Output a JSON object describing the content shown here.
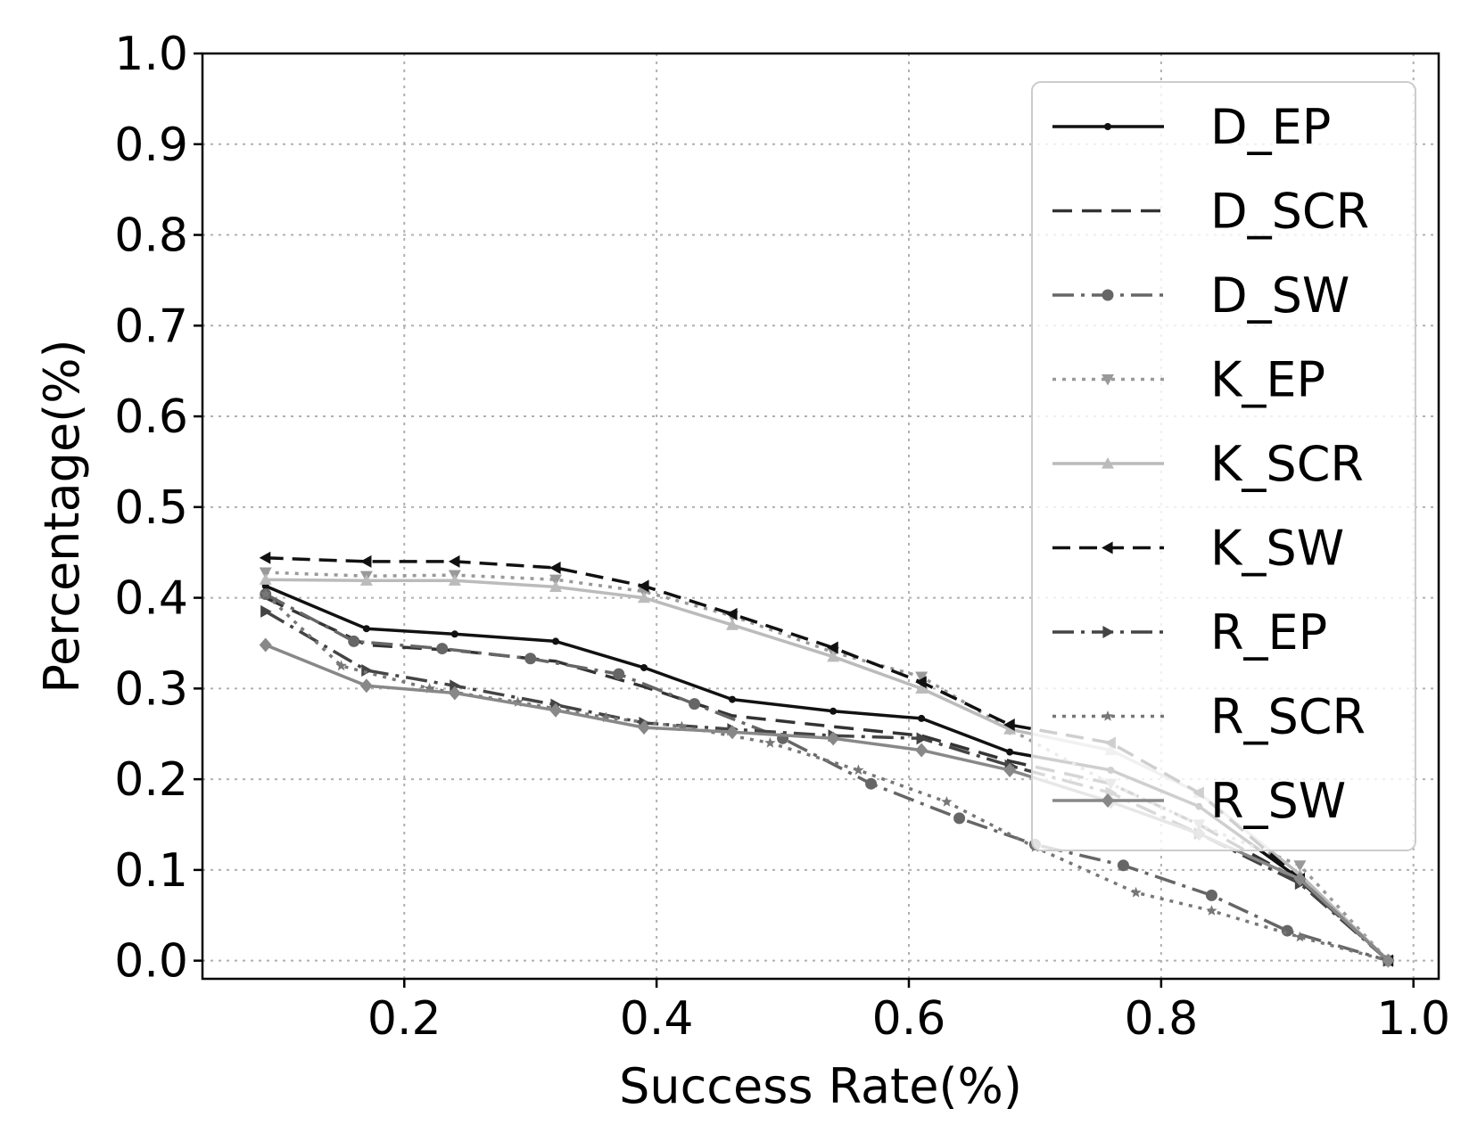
{
  "chart_data": {
    "type": "line",
    "title": "",
    "xlabel": "Success Rate(%)",
    "ylabel": "Percentage(%)",
    "xlim": [
      0.04,
      1.02
    ],
    "ylim": [
      -0.02,
      1.0
    ],
    "xticks": [
      0.2,
      0.4,
      0.6,
      0.8,
      1.0
    ],
    "xtick_labels": [
      "0.2",
      "0.4",
      "0.6",
      "0.8",
      "1.0"
    ],
    "yticks": [
      0.0,
      0.1,
      0.2,
      0.3,
      0.4,
      0.5,
      0.6,
      0.7,
      0.8,
      0.9,
      1.0
    ],
    "ytick_labels": [
      "0.0",
      "0.1",
      "0.2",
      "0.3",
      "0.4",
      "0.5",
      "0.6",
      "0.7",
      "0.8",
      "0.9",
      "1.0"
    ],
    "grid": true,
    "legend_position": "upper-right",
    "series": [
      {
        "name": "D_EP",
        "color": "#111111",
        "dash": "",
        "marker": "dot",
        "x": [
          0.09,
          0.17,
          0.24,
          0.32,
          0.39,
          0.46,
          0.54,
          0.61,
          0.68,
          0.76,
          0.83,
          0.91,
          0.98
        ],
        "y": [
          0.413,
          0.366,
          0.36,
          0.352,
          0.323,
          0.288,
          0.275,
          0.267,
          0.23,
          0.21,
          0.17,
          0.09,
          0.0
        ]
      },
      {
        "name": "D_SCR",
        "color": "#333333",
        "dash": "22,11",
        "marker": "none",
        "x": [
          0.09,
          0.17,
          0.24,
          0.32,
          0.39,
          0.46,
          0.54,
          0.61,
          0.68,
          0.76,
          0.83,
          0.91,
          0.98
        ],
        "y": [
          0.4,
          0.348,
          0.342,
          0.33,
          0.302,
          0.27,
          0.258,
          0.248,
          0.22,
          0.195,
          0.15,
          0.088,
          0.0
        ]
      },
      {
        "name": "D_SW",
        "color": "#666666",
        "dash": "24,8,4,8",
        "marker": "circle",
        "x": [
          0.09,
          0.16,
          0.23,
          0.3,
          0.37,
          0.43,
          0.5,
          0.57,
          0.64,
          0.7,
          0.77,
          0.84,
          0.9,
          0.98
        ],
        "y": [
          0.404,
          0.352,
          0.344,
          0.333,
          0.316,
          0.283,
          0.245,
          0.195,
          0.157,
          0.128,
          0.105,
          0.072,
          0.033,
          0.0
        ]
      },
      {
        "name": "K_EP",
        "color": "#999999",
        "dash": "4,7",
        "marker": "triangle-down",
        "x": [
          0.09,
          0.17,
          0.24,
          0.32,
          0.39,
          0.46,
          0.54,
          0.61,
          0.68,
          0.76,
          0.83,
          0.91,
          0.98
        ],
        "y": [
          0.428,
          0.424,
          0.425,
          0.42,
          0.407,
          0.38,
          0.34,
          0.313,
          0.255,
          0.195,
          0.15,
          0.105,
          0.0
        ]
      },
      {
        "name": "K_SCR",
        "color": "#bbbbbb",
        "dash": "",
        "marker": "triangle-up",
        "x": [
          0.09,
          0.17,
          0.24,
          0.32,
          0.39,
          0.46,
          0.54,
          0.61,
          0.68,
          0.76,
          0.83,
          0.91,
          0.98
        ],
        "y": [
          0.42,
          0.419,
          0.419,
          0.412,
          0.4,
          0.37,
          0.335,
          0.3,
          0.255,
          0.232,
          0.185,
          0.095,
          0.0
        ]
      },
      {
        "name": "K_SW",
        "color": "#111111",
        "dash": "20,10",
        "marker": "triangle-left",
        "x": [
          0.09,
          0.17,
          0.24,
          0.32,
          0.39,
          0.46,
          0.54,
          0.61,
          0.68,
          0.76,
          0.83,
          0.91,
          0.98
        ],
        "y": [
          0.444,
          0.44,
          0.44,
          0.433,
          0.413,
          0.382,
          0.345,
          0.307,
          0.26,
          0.24,
          0.185,
          0.09,
          0.0
        ]
      },
      {
        "name": "R_EP",
        "color": "#444444",
        "dash": "24,8,4,8",
        "marker": "triangle-right",
        "x": [
          0.09,
          0.17,
          0.24,
          0.32,
          0.39,
          0.46,
          0.54,
          0.61,
          0.68,
          0.76,
          0.83,
          0.91,
          0.98
        ],
        "y": [
          0.385,
          0.32,
          0.303,
          0.282,
          0.262,
          0.255,
          0.248,
          0.245,
          0.215,
          0.185,
          0.14,
          0.085,
          0.0
        ]
      },
      {
        "name": "R_SCR",
        "color": "#777777",
        "dash": "4,7",
        "marker": "star",
        "x": [
          0.09,
          0.15,
          0.22,
          0.29,
          0.36,
          0.42,
          0.49,
          0.56,
          0.63,
          0.7,
          0.78,
          0.84,
          0.91,
          0.98
        ],
        "y": [
          0.404,
          0.325,
          0.3,
          0.285,
          0.268,
          0.258,
          0.24,
          0.21,
          0.175,
          0.125,
          0.075,
          0.055,
          0.026,
          0.0
        ]
      },
      {
        "name": "R_SW",
        "color": "#888888",
        "dash": "",
        "marker": "diamond",
        "x": [
          0.09,
          0.17,
          0.24,
          0.32,
          0.39,
          0.46,
          0.54,
          0.61,
          0.68,
          0.76,
          0.83,
          0.91,
          0.98
        ],
        "y": [
          0.348,
          0.303,
          0.295,
          0.276,
          0.257,
          0.252,
          0.245,
          0.232,
          0.21,
          0.175,
          0.14,
          0.09,
          0.0
        ]
      }
    ]
  }
}
